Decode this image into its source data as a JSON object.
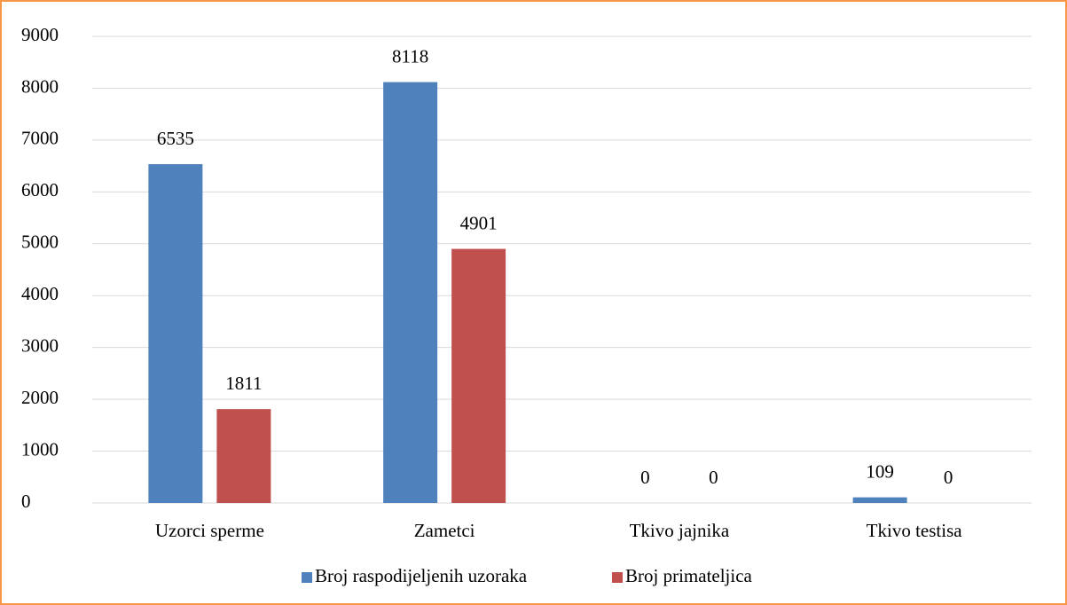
{
  "chart_data": {
    "type": "bar",
    "categories": [
      "Uzorci sperme",
      "Zametci",
      "Tkivo jajnika",
      "Tkivo testisa"
    ],
    "series": [
      {
        "name": "Broj raspodijeljenih uzoraka",
        "color": "#4f81bd",
        "values": [
          6535,
          8118,
          0,
          109
        ]
      },
      {
        "name": "Broj primateljica",
        "color": "#c0504d",
        "values": [
          1811,
          4901,
          0,
          0
        ]
      }
    ],
    "ylim": [
      0,
      9000
    ],
    "yticks": [
      0,
      1000,
      2000,
      3000,
      4000,
      5000,
      6000,
      7000,
      8000,
      9000
    ],
    "grid": true,
    "legend": "bottom",
    "border_color": "#f79646"
  }
}
